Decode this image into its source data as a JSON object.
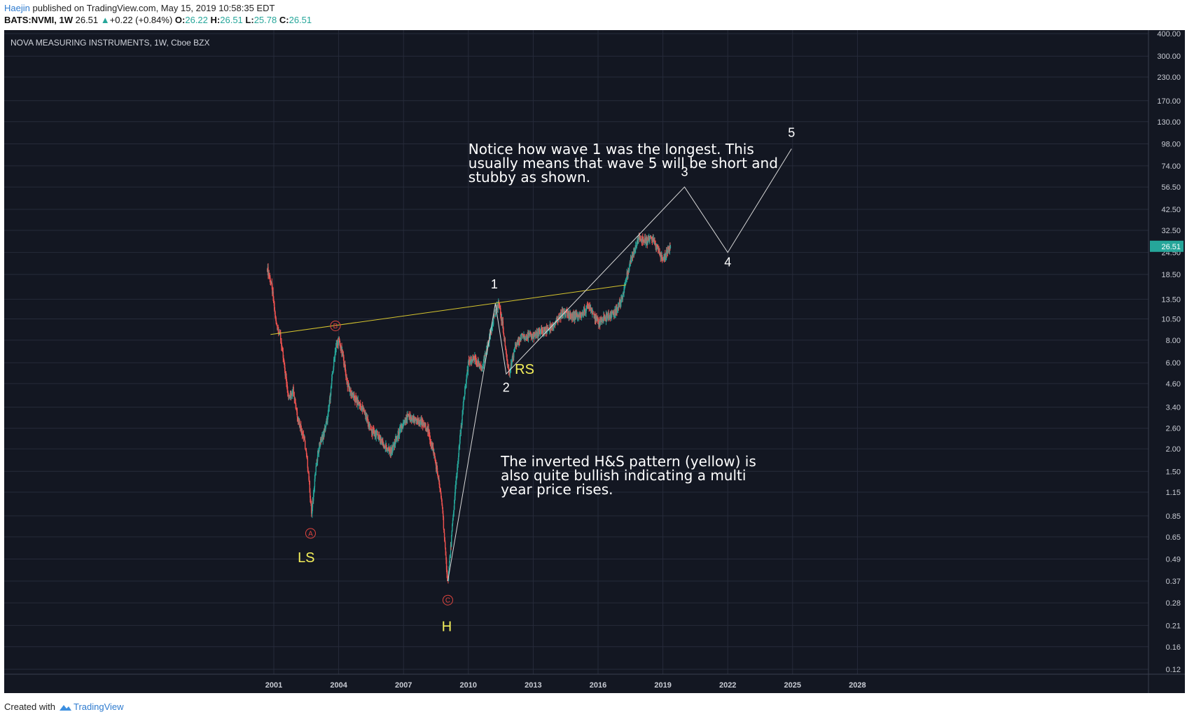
{
  "header": {
    "author": "Haejin",
    "published_text": "published on TradingView.com, May 15, 2019 10:58:35 EDT",
    "symbol": "BATS:NVMI, 1W",
    "last": "26.51",
    "change_arrow": "▲",
    "change": "+0.22 (+0.84%)",
    "open_label": "O:",
    "open": "26.22",
    "high_label": "H:",
    "high": "26.51",
    "low_label": "L:",
    "low": "25.78",
    "close_label": "C:",
    "close": "26.51"
  },
  "footer": {
    "created_with": "Created with",
    "brand": "TradingView",
    "logo_icon": "tradingview-cloud-icon"
  },
  "colors": {
    "background": "#131722",
    "grid": "#262b3a",
    "candle_up": "#26a69a",
    "candle_down": "#ef5350",
    "neckline": "#d6c52e",
    "wave_lines": "#d8d8d8",
    "pattern_label": "#f5f05a",
    "abc_circle": "#e0453f",
    "price_tag": "#26a69a"
  },
  "chart_data": {
    "type": "candlestick",
    "title": "NOVA MEASURING INSTRUMENTS, 1W, Cboe BZX",
    "y_scale": "log",
    "y_ticks": [
      "400.00",
      "300.00",
      "230.00",
      "170.00",
      "130.00",
      "98.00",
      "74.00",
      "56.50",
      "42.50",
      "32.50",
      "24.50",
      "18.50",
      "13.50",
      "10.50",
      "8.00",
      "6.00",
      "4.60",
      "3.40",
      "2.60",
      "2.00",
      "1.50",
      "1.15",
      "0.85",
      "0.65",
      "0.49",
      "0.37",
      "0.28",
      "0.21",
      "0.16",
      "0.12"
    ],
    "x_ticks": [
      "2001",
      "2004",
      "2007",
      "2010",
      "2013",
      "2016",
      "2019",
      "2022",
      "2025",
      "2028"
    ],
    "current_price": "26.51",
    "price_path": [
      [
        2000.7,
        20
      ],
      [
        2000.9,
        16
      ],
      [
        2001.1,
        10
      ],
      [
        2001.3,
        8.5
      ],
      [
        2001.5,
        5.5
      ],
      [
        2001.7,
        3.8
      ],
      [
        2001.9,
        4.3
      ],
      [
        2002.1,
        3
      ],
      [
        2002.4,
        2.3
      ],
      [
        2002.6,
        1.5
      ],
      [
        2002.75,
        0.85
      ],
      [
        2002.9,
        1.4
      ],
      [
        2003.1,
        2.1
      ],
      [
        2003.3,
        2.4
      ],
      [
        2003.5,
        3
      ],
      [
        2003.7,
        5
      ],
      [
        2003.85,
        7.2
      ],
      [
        2004.0,
        8
      ],
      [
        2004.2,
        6.5
      ],
      [
        2004.4,
        4.6
      ],
      [
        2004.6,
        4
      ],
      [
        2004.9,
        3.6
      ],
      [
        2005.2,
        3.2
      ],
      [
        2005.5,
        2.5
      ],
      [
        2005.8,
        2.4
      ],
      [
        2006.1,
        2.1
      ],
      [
        2006.4,
        1.9
      ],
      [
        2006.7,
        2.3
      ],
      [
        2006.9,
        2.6
      ],
      [
        2007.2,
        3
      ],
      [
        2007.5,
        2.9
      ],
      [
        2007.8,
        2.8
      ],
      [
        2008.1,
        2.6
      ],
      [
        2008.4,
        1.9
      ],
      [
        2008.6,
        1.4
      ],
      [
        2008.8,
        0.95
      ],
      [
        2008.95,
        0.5
      ],
      [
        2009.05,
        0.37
      ],
      [
        2009.2,
        0.6
      ],
      [
        2009.4,
        1.2
      ],
      [
        2009.6,
        2.2
      ],
      [
        2009.8,
        3.8
      ],
      [
        2010.0,
        6
      ],
      [
        2010.3,
        6.3
      ],
      [
        2010.6,
        5.5
      ],
      [
        2010.9,
        7.5
      ],
      [
        2011.2,
        11
      ],
      [
        2011.4,
        12.8
      ],
      [
        2011.6,
        9.5
      ],
      [
        2011.8,
        6
      ],
      [
        2011.9,
        5.3
      ],
      [
        2012.2,
        7.5
      ],
      [
        2012.5,
        8.5
      ],
      [
        2012.9,
        8.4
      ],
      [
        2013.3,
        8.8
      ],
      [
        2013.7,
        9.2
      ],
      [
        2014.0,
        9.8
      ],
      [
        2014.4,
        11.5
      ],
      [
        2014.8,
        10.8
      ],
      [
        2015.2,
        11
      ],
      [
        2015.6,
        12.5
      ],
      [
        2016.0,
        10
      ],
      [
        2016.4,
        10.8
      ],
      [
        2016.8,
        11.5
      ],
      [
        2017.1,
        13.5
      ],
      [
        2017.3,
        17.5
      ],
      [
        2017.5,
        22
      ],
      [
        2017.7,
        26
      ],
      [
        2017.9,
        30
      ],
      [
        2018.2,
        28
      ],
      [
        2018.5,
        29.5
      ],
      [
        2018.8,
        25
      ],
      [
        2019.0,
        22
      ],
      [
        2019.2,
        25
      ],
      [
        2019.37,
        26.51
      ]
    ],
    "neckline": [
      [
        2000.85,
        8.6
      ],
      [
        2017.3,
        16.2
      ]
    ],
    "abc_markers": [
      {
        "label": "A",
        "date": 2002.7,
        "price": 0.68
      },
      {
        "label": "B",
        "date": 2003.85,
        "price": 9.6
      },
      {
        "label": "C",
        "date": 2009.05,
        "price": 0.29
      }
    ],
    "pattern_labels": [
      {
        "label": "LS",
        "date": 2002.5,
        "price": 0.47
      },
      {
        "label": "H",
        "date": 2009.0,
        "price": 0.195
      },
      {
        "label": "RS",
        "date": 2012.6,
        "price": 5.2
      }
    ],
    "wave_path": [
      [
        2009.05,
        0.37
      ],
      [
        2011.25,
        12.8
      ],
      [
        2011.75,
        5.2
      ],
      [
        2020.0,
        56.5
      ],
      [
        2022.0,
        24.5
      ],
      [
        2024.95,
        92
      ]
    ],
    "wave_labels": [
      {
        "label": "1",
        "date": 2011.2,
        "price": 15.5
      },
      {
        "label": "2",
        "date": 2011.75,
        "price": 4.15
      },
      {
        "label": "3",
        "date": 2020.0,
        "price": 65
      },
      {
        "label": "4",
        "date": 2022.0,
        "price": 20.5
      },
      {
        "label": "5",
        "date": 2024.95,
        "price": 107
      }
    ],
    "annotations": [
      {
        "text": "Notice how wave 1 was the longest. This usually means that wave 5 will be short and stubby as shown.",
        "lines": [
          "Notice how wave 1 was the longest. This",
          "usually means that wave 5 will be short and",
          "stubby as shown."
        ],
        "date": 2010.0,
        "price": 86
      },
      {
        "text": "The inverted H&S pattern (yellow) is also quite bullish indicating a multi year price rises.",
        "lines": [
          "The inverted H&S pattern (yellow) is",
          "also quite bullish indicating a multi",
          "year price rises."
        ],
        "date": 2011.5,
        "price": 1.6
      }
    ]
  }
}
